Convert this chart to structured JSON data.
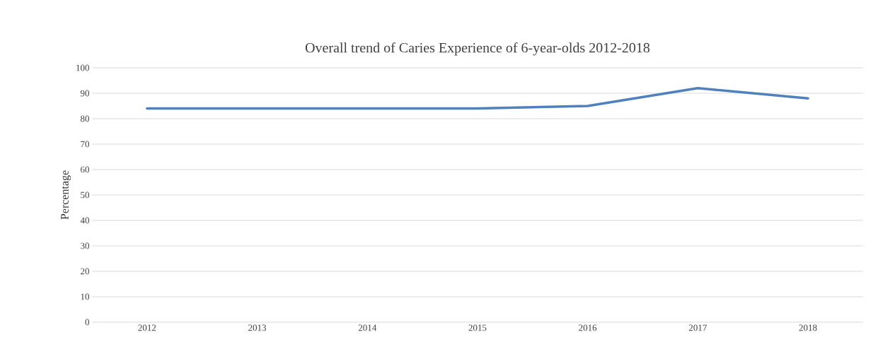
{
  "chart_data": {
    "type": "line",
    "title": "Overall trend of Caries Experience of 6-year-olds 2012-2018",
    "ylabel": "Percentage",
    "categories": [
      "2012",
      "2013",
      "2014",
      "2015",
      "2016",
      "2017",
      "2018"
    ],
    "series": [
      {
        "color": "#4f81bd",
        "values": [
          84,
          84,
          84,
          84,
          85,
          92,
          88
        ]
      }
    ],
    "ylim": [
      0,
      100
    ],
    "yticks": [
      0,
      10,
      20,
      30,
      40,
      50,
      60,
      70,
      80,
      90,
      100
    ],
    "grid": "y",
    "legend": false,
    "marker": "none",
    "line_style": "solid"
  }
}
